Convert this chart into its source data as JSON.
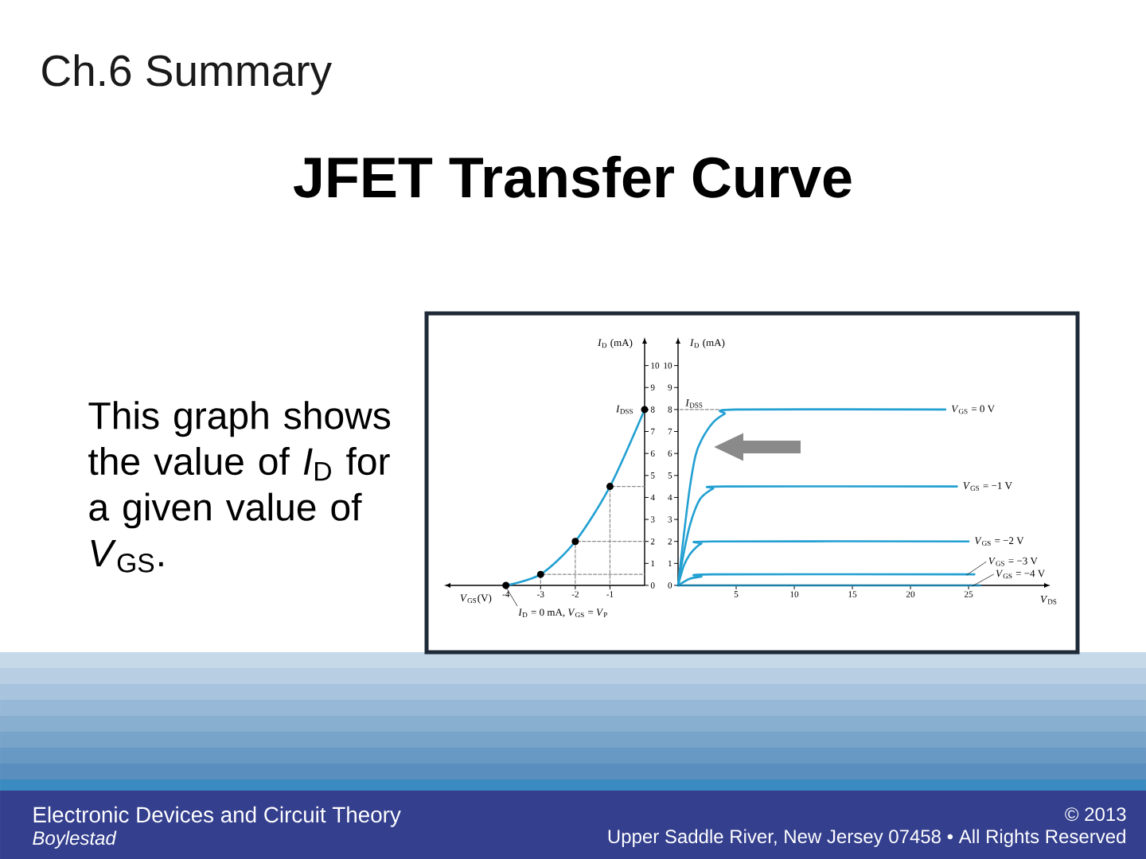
{
  "chart_data": [
    {
      "type": "other",
      "title": "JFET Transfer Curve",
      "annotations": [
        "Ch.6 Summary",
        "This graph shows the value of *I*$_{D}$ for a given value of *V*$_{GS}$.",
        "Electronic Devices and Circuit Theory",
        "Boylestad",
        "© 2013",
        "Upper Saddle River, New Jersey 07458 • All Rights Reserved"
      ]
    },
    {
      "type": "line",
      "xlabel": "*V*$_{GS}$(V)",
      "ylabel": "*I*$_{D}$ (mA)",
      "xlim": [
        -5.6,
        0
      ],
      "ylim": [
        0,
        11
      ],
      "xticks": [
        -4,
        -3,
        -2,
        -1
      ],
      "yticks": [
        0,
        1,
        2,
        3,
        4,
        5,
        6,
        7,
        8,
        9,
        10
      ],
      "marker": "circle",
      "line_style": "solid",
      "series": [
        {
          "color": "#22a0d2",
          "x": [
            -4,
            -3,
            -2,
            -1,
            0
          ],
          "values": [
            0,
            0.5,
            2,
            4.5,
            8
          ]
        },
        {
          "color": "#8c8c8c",
          "line_style": "dashed",
          "marker": "none",
          "x": [
            -3,
            -3
          ],
          "values": [
            0,
            0.5
          ]
        },
        {
          "color": "#8c8c8c",
          "line_style": "dashed",
          "marker": "none",
          "x": [
            -3,
            0
          ],
          "values": [
            0.5,
            0.5
          ]
        },
        {
          "color": "#8c8c8c",
          "line_style": "dashed",
          "marker": "none",
          "x": [
            -2,
            -2
          ],
          "values": [
            0,
            2
          ]
        },
        {
          "color": "#8c8c8c",
          "line_style": "dashed",
          "marker": "none",
          "x": [
            -2,
            0
          ],
          "values": [
            2,
            2
          ]
        },
        {
          "color": "#8c8c8c",
          "line_style": "dashed",
          "marker": "none",
          "x": [
            -1,
            -1
          ],
          "values": [
            0,
            4.5
          ]
        },
        {
          "color": "#8c8c8c",
          "line_style": "dashed",
          "marker": "none",
          "x": [
            -1,
            0
          ],
          "values": [
            4.5,
            4.5
          ]
        }
      ],
      "annotations": [
        "*I*$_{DSS}$",
        "*I*$_{D}$ = 0 mA, *V*$_{GS}$ = *V*$_{P}$"
      ]
    },
    {
      "type": "line",
      "xlabel": "*V*$_{DS}$",
      "ylabel": "*I*$_{D}$ (mA)",
      "xlim": [
        0,
        31.5
      ],
      "ylim": [
        0,
        11
      ],
      "xticks": [
        5,
        10,
        15,
        20,
        25
      ],
      "yticks": [
        0,
        1,
        2,
        3,
        4,
        5,
        6,
        7,
        8,
        9,
        10
      ],
      "line_style": "solid",
      "series": [
        {
          "name": "*V*$_{GS}$ = 0 V",
          "color": "#22a0d2",
          "x": [
            0,
            0.5,
            1,
            1.5,
            2,
            3,
            4,
            5,
            23
          ],
          "values": [
            0,
            2.3,
            4.4,
            5.9,
            6.6,
            7.4,
            7.8,
            8,
            8
          ]
        },
        {
          "name": "*V*$_{GS}$ = −1 V",
          "color": "#22a0d2",
          "x": [
            0,
            0.5,
            1,
            1.5,
            2,
            3,
            4,
            24
          ],
          "values": [
            0,
            1.5,
            2.7,
            3.5,
            4,
            4.4,
            4.5,
            4.5
          ]
        },
        {
          "name": "*V*$_{GS}$ = −2 V",
          "color": "#22a0d2",
          "x": [
            0,
            0.5,
            1,
            1.5,
            2,
            3,
            25
          ],
          "values": [
            0,
            0.9,
            1.4,
            1.7,
            1.9,
            2,
            2
          ]
        },
        {
          "name": "*V*$_{GS}$ = −3 V",
          "color": "#22a0d2",
          "x": [
            0,
            1,
            2,
            3,
            25.5
          ],
          "values": [
            0,
            0.3,
            0.4,
            0.5,
            0.5
          ]
        },
        {
          "name": "*V*$_{GS}$ = −4 V",
          "color": "#1c7fa8",
          "x": [
            0,
            26
          ],
          "values": [
            0,
            0
          ]
        },
        {
          "color": "#8c8c8c",
          "line_style": "dashed",
          "marker": "none",
          "x": [
            0,
            3.5
          ],
          "values": [
            8,
            8
          ]
        }
      ],
      "annotations": [
        {
          "text": "*I*$_{DSS}$",
          "y": 8
        }
      ]
    }
  ]
}
